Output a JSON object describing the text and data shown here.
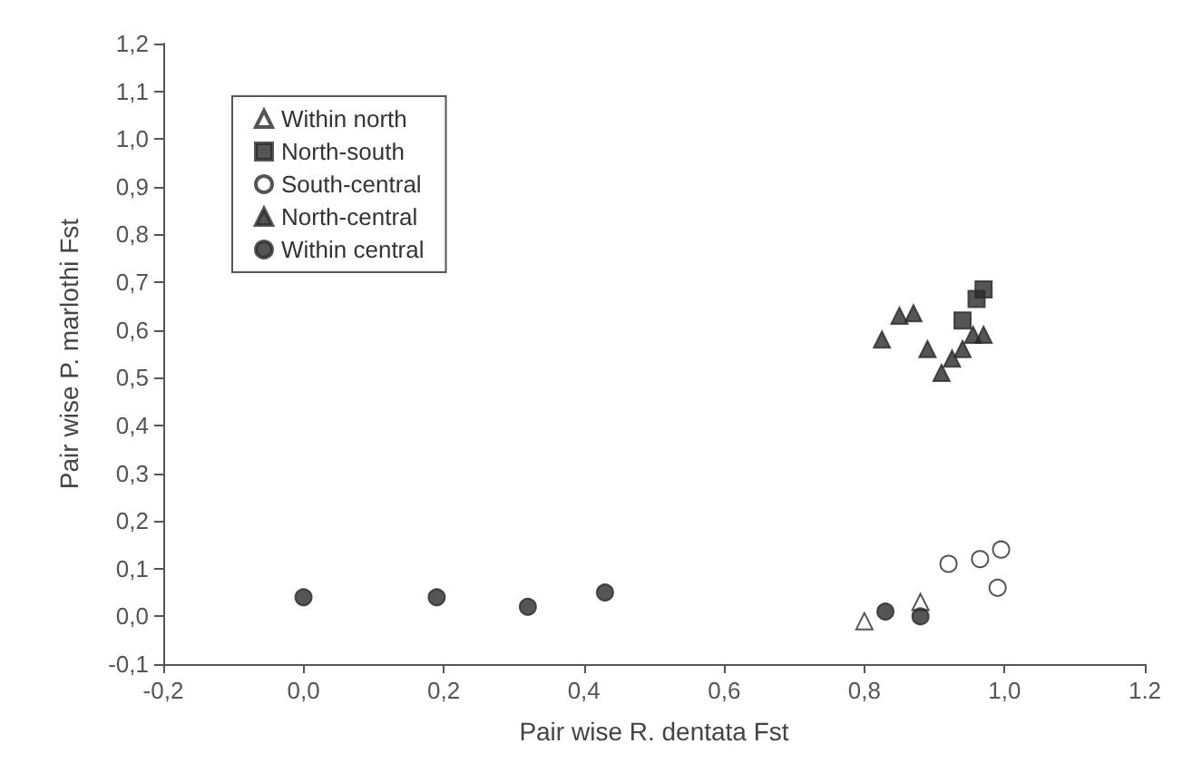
{
  "chart_data": {
    "type": "scatter",
    "xlabel": "Pair wise R. dentata Fst",
    "ylabel": "Pair wise P. marlothi Fst",
    "xlim": [
      -0.2,
      1.2
    ],
    "ylim": [
      -0.1,
      1.2
    ],
    "xticks": [
      {
        "value": -0.2,
        "label": "-0,2"
      },
      {
        "value": 0,
        "label": "0,0"
      },
      {
        "value": 0.2,
        "label": "0,2"
      },
      {
        "value": 0.4,
        "label": "0,4"
      },
      {
        "value": 0.6,
        "label": "0,6"
      },
      {
        "value": 0.8,
        "label": "0,8"
      },
      {
        "value": 1.0,
        "label": "1,0"
      },
      1.2
    ],
    "yticks": [
      {
        "value": -0.1,
        "label": "-0,1"
      },
      {
        "value": 0,
        "label": "0,0"
      },
      {
        "value": 0.1,
        "label": "0,1"
      },
      {
        "value": 0.2,
        "label": "0,2"
      },
      {
        "value": 0.3,
        "label": "0,3"
      },
      {
        "value": 0.4,
        "label": "0,4"
      },
      {
        "value": 0.5,
        "label": "0,5"
      },
      {
        "value": 0.6,
        "label": "0,6"
      },
      {
        "value": 0.7,
        "label": "0,7"
      },
      {
        "value": 0.8,
        "label": "0,8"
      },
      {
        "value": 0.9,
        "label": "0,9"
      },
      {
        "value": 1.0,
        "label": "1,0"
      },
      {
        "value": 1.1,
        "label": "1,1"
      },
      {
        "value": 1.2,
        "label": "1,2"
      }
    ],
    "grid": false,
    "legend": "top left",
    "series": [
      {
        "name": "Within north",
        "marker": "triangle",
        "color": "#ffffff",
        "x": [
          0.8,
          0.88
        ],
        "values": [
          -0.01,
          0.03
        ]
      },
      {
        "name": "North-south",
        "marker": "square",
        "color": "#2a2a2a",
        "x": [
          0.94,
          0.96,
          0.97
        ],
        "values": [
          0.62,
          0.665,
          0.685
        ]
      },
      {
        "name": "South-central",
        "marker": "circle",
        "color": "#ffffff",
        "x": [
          0.92,
          0.965,
          0.995,
          0.99
        ],
        "values": [
          0.11,
          0.12,
          0.14,
          0.06
        ]
      },
      {
        "name": "North-central",
        "marker": "triangle",
        "color": "#2a2a2a",
        "x": [
          0.825,
          0.85,
          0.87,
          0.89,
          0.91,
          0.925,
          0.94,
          0.955,
          0.97
        ],
        "values": [
          0.58,
          0.63,
          0.635,
          0.56,
          0.51,
          0.54,
          0.56,
          0.59,
          0.59
        ]
      },
      {
        "name": "Within central",
        "marker": "circle",
        "color": "#2a2a2a",
        "x": [
          0.0,
          0.19,
          0.32,
          0.43,
          0.83,
          0.88
        ],
        "values": [
          0.04,
          0.04,
          0.02,
          0.05,
          0.01,
          0.0
        ]
      }
    ]
  }
}
